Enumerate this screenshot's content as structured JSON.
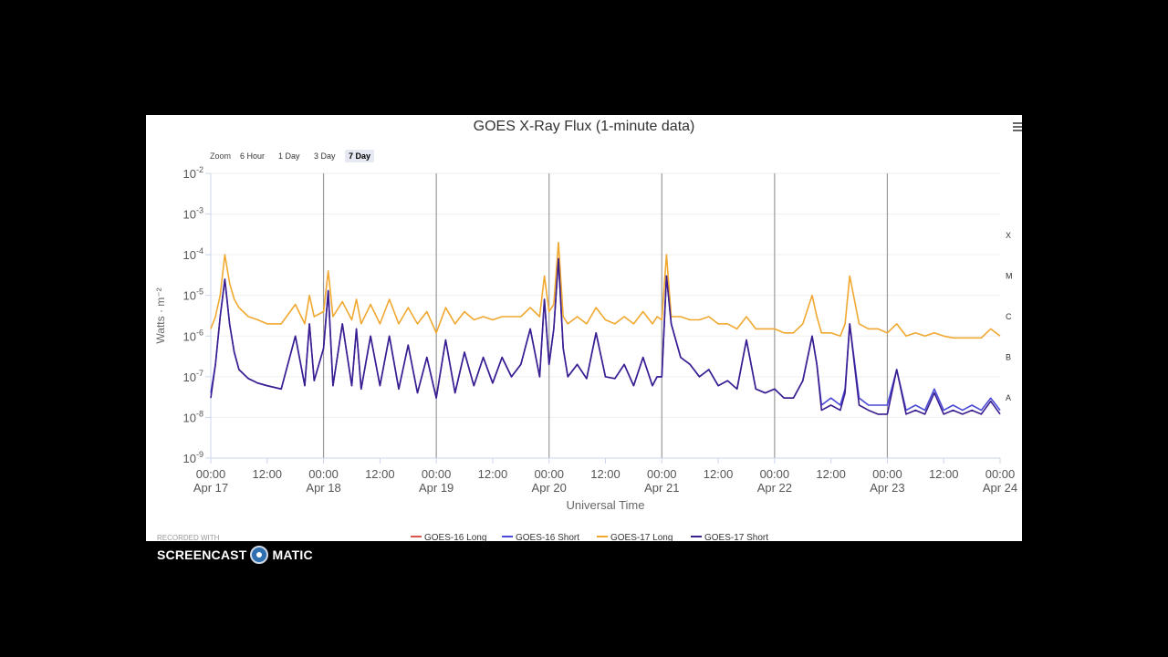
{
  "chart_data": {
    "type": "line",
    "title": "GOES X-Ray Flux (1-minute data)",
    "xlabel": "Universal Time",
    "ylabel": "Watts · m⁻²",
    "y_scale": "log",
    "ylim": [
      1e-09,
      0.01
    ],
    "xlim": [
      "Apr 17 00:00",
      "Apr 24 00:00"
    ],
    "grid": "vertical lines at each day start",
    "legend_position": "bottom",
    "y_tick_labels": [
      {
        "base": "10",
        "exp": "-2",
        "value": 0.01
      },
      {
        "base": "10",
        "exp": "-3",
        "value": 0.001
      },
      {
        "base": "10",
        "exp": "-4",
        "value": 0.0001
      },
      {
        "base": "10",
        "exp": "-5",
        "value": 1e-05
      },
      {
        "base": "10",
        "exp": "-6",
        "value": 1e-06
      },
      {
        "base": "10",
        "exp": "-7",
        "value": 1e-07
      },
      {
        "base": "10",
        "exp": "-8",
        "value": 1e-08
      },
      {
        "base": "10",
        "exp": "-9",
        "value": 1e-09
      }
    ],
    "x_ticks": [
      {
        "hour": 0,
        "time": "00:00",
        "date": "Apr 17"
      },
      {
        "hour": 12,
        "time": "12:00",
        "date": ""
      },
      {
        "hour": 24,
        "time": "00:00",
        "date": "Apr 18"
      },
      {
        "hour": 36,
        "time": "12:00",
        "date": ""
      },
      {
        "hour": 48,
        "time": "00:00",
        "date": "Apr 19"
      },
      {
        "hour": 60,
        "time": "12:00",
        "date": ""
      },
      {
        "hour": 72,
        "time": "00:00",
        "date": "Apr 20"
      },
      {
        "hour": 84,
        "time": "12:00",
        "date": ""
      },
      {
        "hour": 96,
        "time": "00:00",
        "date": "Apr 21"
      },
      {
        "hour": 108,
        "time": "12:00",
        "date": ""
      },
      {
        "hour": 120,
        "time": "00:00",
        "date": "Apr 22"
      },
      {
        "hour": 132,
        "time": "12:00",
        "date": ""
      },
      {
        "hour": 144,
        "time": "00:00",
        "date": "Apr 23"
      },
      {
        "hour": 156,
        "time": "12:00",
        "date": ""
      },
      {
        "hour": 168,
        "time": "00:00",
        "date": "Apr 24"
      }
    ],
    "flare_classes": [
      {
        "label": "X",
        "value": 0.0003
      },
      {
        "label": "M",
        "value": 3e-05
      },
      {
        "label": "C",
        "value": 3e-06
      },
      {
        "label": "B",
        "value": 3e-07
      },
      {
        "label": "A",
        "value": 3e-08
      }
    ],
    "series": [
      {
        "name": "GOES-16 Long",
        "color": "#d9534f",
        "hours": [],
        "values": []
      },
      {
        "name": "GOES-16 Short",
        "color": "#4a4ad6",
        "hours": [
          0,
          1,
          2,
          3,
          4,
          5,
          6,
          8,
          10,
          12,
          15,
          18,
          20,
          21,
          22,
          24,
          25,
          26,
          28,
          30,
          31,
          32,
          34,
          36,
          38,
          40,
          42,
          44,
          46,
          48,
          50,
          52,
          54,
          56,
          58,
          60,
          62,
          64,
          66,
          68,
          70,
          71,
          72,
          73,
          74,
          75,
          76,
          78,
          80,
          82,
          84,
          86,
          88,
          90,
          92,
          94,
          95,
          96,
          97,
          98,
          100,
          102,
          104,
          106,
          108,
          110,
          112,
          114,
          116,
          118,
          120,
          122,
          124,
          126,
          128,
          129,
          130,
          132,
          134,
          135,
          136,
          138,
          140,
          142,
          144,
          146,
          148,
          150,
          152,
          154,
          156,
          158,
          160,
          162,
          164,
          166,
          168
        ],
        "values": [
          4e-08,
          2e-07,
          3e-06,
          2.5e-05,
          2e-06,
          4e-07,
          1.5e-07,
          9e-08,
          7e-08,
          6e-08,
          5e-08,
          1e-06,
          6e-08,
          2e-06,
          8e-08,
          5e-07,
          1.3e-05,
          6e-08,
          2e-06,
          6e-08,
          1.5e-06,
          5e-08,
          1e-06,
          6e-08,
          1e-06,
          5e-08,
          6e-07,
          4e-08,
          3e-07,
          3e-08,
          8e-07,
          4e-08,
          4e-07,
          6e-08,
          3e-07,
          7e-08,
          3e-07,
          1e-07,
          2e-07,
          1.5e-06,
          1e-07,
          8e-06,
          2e-07,
          1.5e-06,
          8e-05,
          5e-07,
          1e-07,
          2e-07,
          9e-08,
          1.2e-06,
          1e-07,
          9e-08,
          2e-07,
          6e-08,
          3e-07,
          6e-08,
          1e-07,
          1e-07,
          3e-05,
          2e-06,
          3e-07,
          2e-07,
          1e-07,
          1.5e-07,
          6e-08,
          8e-08,
          5e-08,
          8e-07,
          5e-08,
          4e-08,
          5e-08,
          3e-08,
          3e-08,
          8e-08,
          1e-06,
          2e-07,
          2e-08,
          3e-08,
          2e-08,
          5e-08,
          2e-06,
          3e-08,
          2e-08,
          2e-08,
          2e-08,
          1.5e-07,
          1.5e-08,
          2e-08,
          1.5e-08,
          5e-08,
          1.5e-08,
          2e-08,
          1.5e-08,
          2e-08,
          1.5e-08,
          3e-08,
          1.5e-08
        ]
      },
      {
        "name": "GOES-17 Long",
        "color": "#f0a830",
        "hours": [
          0,
          1,
          2,
          3,
          4,
          5,
          6,
          8,
          10,
          12,
          15,
          18,
          20,
          21,
          22,
          24,
          25,
          26,
          28,
          30,
          31,
          32,
          34,
          36,
          38,
          40,
          42,
          44,
          46,
          48,
          50,
          52,
          54,
          56,
          58,
          60,
          62,
          64,
          66,
          68,
          70,
          71,
          72,
          73,
          74,
          75,
          76,
          78,
          80,
          82,
          84,
          86,
          88,
          90,
          92,
          94,
          95,
          96,
          97,
          98,
          100,
          102,
          104,
          106,
          108,
          110,
          112,
          114,
          116,
          118,
          120,
          122,
          124,
          126,
          128,
          129,
          130,
          132,
          134,
          135,
          136,
          138,
          140,
          142,
          144,
          146,
          148,
          150,
          152,
          154,
          156,
          158,
          160,
          162,
          164,
          166,
          168
        ],
        "values": [
          1.5e-06,
          3e-06,
          1e-05,
          0.0001,
          2e-05,
          8e-06,
          5e-06,
          3e-06,
          2.5e-06,
          2e-06,
          2e-06,
          6e-06,
          2e-06,
          1e-05,
          3e-06,
          4e-06,
          4e-05,
          3e-06,
          7e-06,
          2.5e-06,
          8e-06,
          2e-06,
          6e-06,
          2e-06,
          8e-06,
          2e-06,
          5e-06,
          2e-06,
          4e-06,
          1.2e-06,
          5e-06,
          2e-06,
          4e-06,
          2.5e-06,
          3e-06,
          2.5e-06,
          3e-06,
          3e-06,
          3e-06,
          5e-06,
          3e-06,
          3e-05,
          4e-06,
          6e-06,
          0.0002,
          3e-06,
          2e-06,
          3e-06,
          2e-06,
          5e-06,
          2.5e-06,
          2e-06,
          3e-06,
          2e-06,
          4e-06,
          2e-06,
          3e-06,
          2.5e-06,
          0.0001,
          3e-06,
          3e-06,
          2.5e-06,
          2.5e-06,
          3e-06,
          2e-06,
          2e-06,
          1.5e-06,
          3e-06,
          1.5e-06,
          1.5e-06,
          1.5e-06,
          1.2e-06,
          1.2e-06,
          2e-06,
          1e-05,
          3e-06,
          1.2e-06,
          1.2e-06,
          1e-06,
          2e-06,
          3e-05,
          2e-06,
          1.5e-06,
          1.5e-06,
          1.2e-06,
          2e-06,
          1e-06,
          1.2e-06,
          1e-06,
          1.2e-06,
          1e-06,
          9e-07,
          9e-07,
          9e-07,
          9e-07,
          1.5e-06,
          1e-06
        ]
      },
      {
        "name": "GOES-17 Short",
        "color": "#3a1d8f",
        "hours": [
          0,
          1,
          2,
          3,
          4,
          5,
          6,
          8,
          10,
          12,
          15,
          18,
          20,
          21,
          22,
          24,
          25,
          26,
          28,
          30,
          31,
          32,
          34,
          36,
          38,
          40,
          42,
          44,
          46,
          48,
          50,
          52,
          54,
          56,
          58,
          60,
          62,
          64,
          66,
          68,
          70,
          71,
          72,
          73,
          74,
          75,
          76,
          78,
          80,
          82,
          84,
          86,
          88,
          90,
          92,
          94,
          95,
          96,
          97,
          98,
          100,
          102,
          104,
          106,
          108,
          110,
          112,
          114,
          116,
          118,
          120,
          122,
          124,
          126,
          128,
          129,
          130,
          132,
          134,
          135,
          136,
          138,
          140,
          142,
          144,
          146,
          148,
          150,
          152,
          154,
          156,
          158,
          160,
          162,
          164,
          166,
          168
        ],
        "values": [
          3e-08,
          2e-07,
          3e-06,
          2.5e-05,
          2e-06,
          4e-07,
          1.5e-07,
          9e-08,
          7e-08,
          6e-08,
          5e-08,
          1e-06,
          6e-08,
          2e-06,
          8e-08,
          5e-07,
          1.3e-05,
          6e-08,
          2e-06,
          6e-08,
          1.5e-06,
          5e-08,
          1e-06,
          6e-08,
          1e-06,
          5e-08,
          6e-07,
          4e-08,
          3e-07,
          3e-08,
          8e-07,
          4e-08,
          4e-07,
          6e-08,
          3e-07,
          7e-08,
          3e-07,
          1e-07,
          2e-07,
          1.5e-06,
          1e-07,
          8e-06,
          2e-07,
          1.5e-06,
          8e-05,
          5e-07,
          1e-07,
          2e-07,
          9e-08,
          1.2e-06,
          1e-07,
          9e-08,
          2e-07,
          6e-08,
          3e-07,
          6e-08,
          1e-07,
          1e-07,
          3e-05,
          2e-06,
          3e-07,
          2e-07,
          1e-07,
          1.5e-07,
          6e-08,
          8e-08,
          5e-08,
          8e-07,
          5e-08,
          4e-08,
          5e-08,
          3e-08,
          3e-08,
          8e-08,
          1e-06,
          2e-07,
          1.5e-08,
          2e-08,
          1.5e-08,
          4e-08,
          2e-06,
          2e-08,
          1.5e-08,
          1.2e-08,
          1.2e-08,
          1.5e-07,
          1.2e-08,
          1.5e-08,
          1.2e-08,
          4e-08,
          1.2e-08,
          1.5e-08,
          1.2e-08,
          1.5e-08,
          1.2e-08,
          2.5e-08,
          1.2e-08
        ]
      }
    ]
  },
  "zoom": {
    "label": "Zoom",
    "buttons": [
      "6 Hour",
      "1 Day",
      "3 Day",
      "7 Day"
    ],
    "selected": "7 Day"
  },
  "watermark": {
    "recorded": "RECORDED WITH",
    "brand_left": "SCREENCAST",
    "brand_right": "MATIC"
  }
}
